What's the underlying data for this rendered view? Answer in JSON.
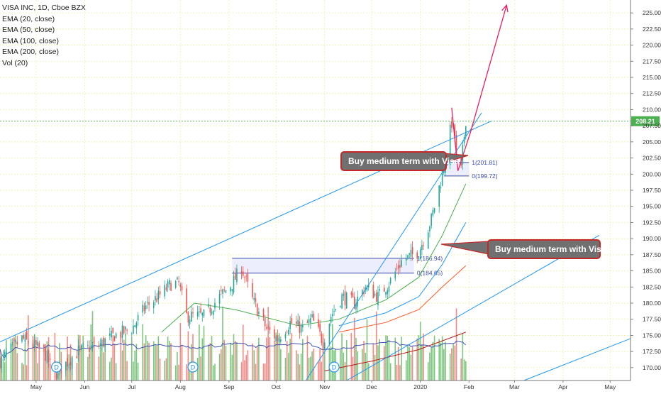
{
  "header": {
    "symbol_line": "VISA INC, 1D, Cboe BZX",
    "indicators": [
      "EMA (20, close)",
      "EMA (50, close)",
      "EMA (100, close)",
      "EMA (200, close)",
      "Vol (20)"
    ]
  },
  "annotations": {
    "callouts": [
      "Buy medium term with Visa",
      "Buy medium term with Visa"
    ],
    "fib_upper": [
      {
        "level": "1",
        "price": "(201.81)"
      },
      {
        "level": "0",
        "price": "(199.72)"
      }
    ],
    "fib_lower": [
      {
        "level": "1",
        "price": "(186.94)"
      },
      {
        "level": "0",
        "price": "(184.65)"
      }
    ],
    "dividend_marker": "D",
    "dividend_months": [
      "Aug",
      "Dec"
    ]
  },
  "colors": {
    "up": "#26a69a",
    "down": "#ef5350",
    "vol_up": "#7dc67f",
    "vol_down": "#f08b87",
    "trendline": "#2196f3",
    "ema20": "#4caf50",
    "ema50": "#2196f3",
    "ema100": "#ff5722",
    "ema200": "#b71c1c",
    "vol_ma": "#3f51b5",
    "arrow": "#e91e63",
    "last_price": "#4caf50"
  },
  "chart_data": {
    "type": "candlestick",
    "title": "VISA INC, 1D, Cboe BZX",
    "last_price": 208.21,
    "ylim": [
      168,
      227
    ],
    "y_ticks": [
      "225.00",
      "222.50",
      "220.00",
      "217.50",
      "215.00",
      "212.50",
      "210.00",
      "207.50",
      "205.00",
      "202.50",
      "200.00",
      "197.50",
      "195.00",
      "192.50",
      "190.00",
      "187.50",
      "185.00",
      "182.50",
      "180.00",
      "177.50",
      "175.00",
      "172.50",
      "170.00"
    ],
    "x_ticks": [
      "May",
      "Jun",
      "Jul",
      "Aug",
      "Sep",
      "Oct",
      "Nov",
      "Dec",
      "2020",
      "Feb",
      "Mar",
      "Apr",
      "May"
    ],
    "x_tick_dates": [
      "2019-05-01",
      "2019-06-01",
      "2019-07-01",
      "2019-08-01",
      "2019-09-01",
      "2019-10-01",
      "2019-11-01",
      "2019-12-01",
      "2020-01-01",
      "2020-02-01",
      "2020-03-01",
      "2020-04-01",
      "2020-05-01"
    ],
    "xlim": [
      "2019-04-08",
      "2020-05-14"
    ],
    "price_keypoints": [
      {
        "date": "2019-04-08",
        "close": 171.0
      },
      {
        "date": "2019-04-22",
        "close": 174.5
      },
      {
        "date": "2019-05-06",
        "close": 172.5
      },
      {
        "date": "2019-05-13",
        "close": 169.0
      },
      {
        "date": "2019-05-28",
        "close": 172.5
      },
      {
        "date": "2019-06-10",
        "close": 173.5
      },
      {
        "date": "2019-06-20",
        "close": 175.0
      },
      {
        "date": "2019-07-01",
        "close": 176.0
      },
      {
        "date": "2019-07-10",
        "close": 179.5
      },
      {
        "date": "2019-07-18",
        "close": 181.0
      },
      {
        "date": "2019-07-26",
        "close": 183.0
      },
      {
        "date": "2019-07-31",
        "close": 183.0
      },
      {
        "date": "2019-08-05",
        "close": 178.0
      },
      {
        "date": "2019-08-16",
        "close": 178.0
      },
      {
        "date": "2019-08-26",
        "close": 181.0
      },
      {
        "date": "2019-09-03",
        "close": 183.0
      },
      {
        "date": "2019-09-09",
        "close": 185.5
      },
      {
        "date": "2019-09-16",
        "close": 180.5
      },
      {
        "date": "2019-09-25",
        "close": 176.0
      },
      {
        "date": "2019-10-02",
        "close": 174.5
      },
      {
        "date": "2019-10-10",
        "close": 177.0
      },
      {
        "date": "2019-10-18",
        "close": 176.0
      },
      {
        "date": "2019-10-24",
        "close": 177.5
      },
      {
        "date": "2019-10-31",
        "close": 174.0
      },
      {
        "date": "2019-11-05",
        "close": 178.0
      },
      {
        "date": "2019-11-12",
        "close": 181.0
      },
      {
        "date": "2019-11-20",
        "close": 180.0
      },
      {
        "date": "2019-11-27",
        "close": 182.5
      },
      {
        "date": "2019-12-05",
        "close": 181.0
      },
      {
        "date": "2019-12-13",
        "close": 183.5
      },
      {
        "date": "2019-12-20",
        "close": 186.5
      },
      {
        "date": "2019-12-31",
        "close": 188.0
      },
      {
        "date": "2020-01-08",
        "close": 193.0
      },
      {
        "date": "2020-01-14",
        "close": 199.0
      },
      {
        "date": "2020-01-17",
        "close": 202.5
      },
      {
        "date": "2020-01-21",
        "close": 208.0
      },
      {
        "date": "2020-01-23",
        "close": 206.0
      },
      {
        "date": "2020-01-24",
        "close": 202.0
      },
      {
        "date": "2020-01-27",
        "close": 200.5
      },
      {
        "date": "2020-01-28",
        "close": 203.5
      },
      {
        "date": "2020-01-30",
        "close": 208.5
      }
    ],
    "ema_keypoints": {
      "EMA (20, close)": [
        {
          "date": "2019-07-20",
          "value": 175.5
        },
        {
          "date": "2019-08-10",
          "value": 180.0
        },
        {
          "date": "2019-09-05",
          "value": 179.0
        },
        {
          "date": "2019-10-15",
          "value": 176.5
        },
        {
          "date": "2019-11-10",
          "value": 177.5
        },
        {
          "date": "2019-12-10",
          "value": 180.5
        },
        {
          "date": "2019-12-31",
          "value": 184.0
        },
        {
          "date": "2020-01-15",
          "value": 190.5
        },
        {
          "date": "2020-01-30",
          "value": 198.5
        }
      ],
      "EMA (50, close)": [
        {
          "date": "2019-11-10",
          "value": 176.5
        },
        {
          "date": "2019-12-10",
          "value": 178.5
        },
        {
          "date": "2019-12-31",
          "value": 181.0
        },
        {
          "date": "2020-01-15",
          "value": 186.0
        },
        {
          "date": "2020-01-30",
          "value": 192.5
        }
      ],
      "EMA (100, close)": [
        {
          "date": "2019-11-10",
          "value": 175.5
        },
        {
          "date": "2019-12-10",
          "value": 177.0
        },
        {
          "date": "2019-12-31",
          "value": 179.0
        },
        {
          "date": "2020-01-15",
          "value": 182.5
        },
        {
          "date": "2020-01-30",
          "value": 185.8
        }
      ],
      "EMA (200, close)": [
        {
          "date": "2019-11-01",
          "value": 169.5
        },
        {
          "date": "2019-12-01",
          "value": 171.0
        },
        {
          "date": "2019-12-31",
          "value": 172.8
        },
        {
          "date": "2020-01-30",
          "value": 175.5
        }
      ]
    },
    "trendlines": [
      {
        "from": {
          "date": "2019-04-08",
          "value": 174.0
        },
        "to": {
          "date": "2020-02-15",
          "value": 208.2
        }
      },
      {
        "from": {
          "date": "2019-10-20",
          "value": 168.0
        },
        "to": {
          "date": "2020-02-09",
          "value": 209.5
        }
      },
      {
        "from": {
          "date": "2019-11-15",
          "value": 168.0
        },
        "to": {
          "date": "2020-04-24",
          "value": 190.5
        }
      },
      {
        "from": {
          "date": "2020-03-07",
          "value": 168.0
        },
        "to": {
          "date": "2020-05-14",
          "value": 174.5
        }
      }
    ],
    "projection_arrow": [
      {
        "date": "2020-01-21",
        "value": 210.3
      },
      {
        "date": "2020-01-25",
        "value": 200.5
      },
      {
        "date": "2020-02-02",
        "value": 206.5
      },
      {
        "date": "2020-02-25",
        "value": 226.2
      }
    ],
    "fib_ranges": [
      {
        "from": "2019-09-03",
        "to": "2019-12-28",
        "levels": [
          186.94,
          184.65
        ]
      },
      {
        "from": "2020-01-16",
        "to": "2020-02-01",
        "levels": [
          201.81,
          199.72
        ]
      }
    ]
  }
}
